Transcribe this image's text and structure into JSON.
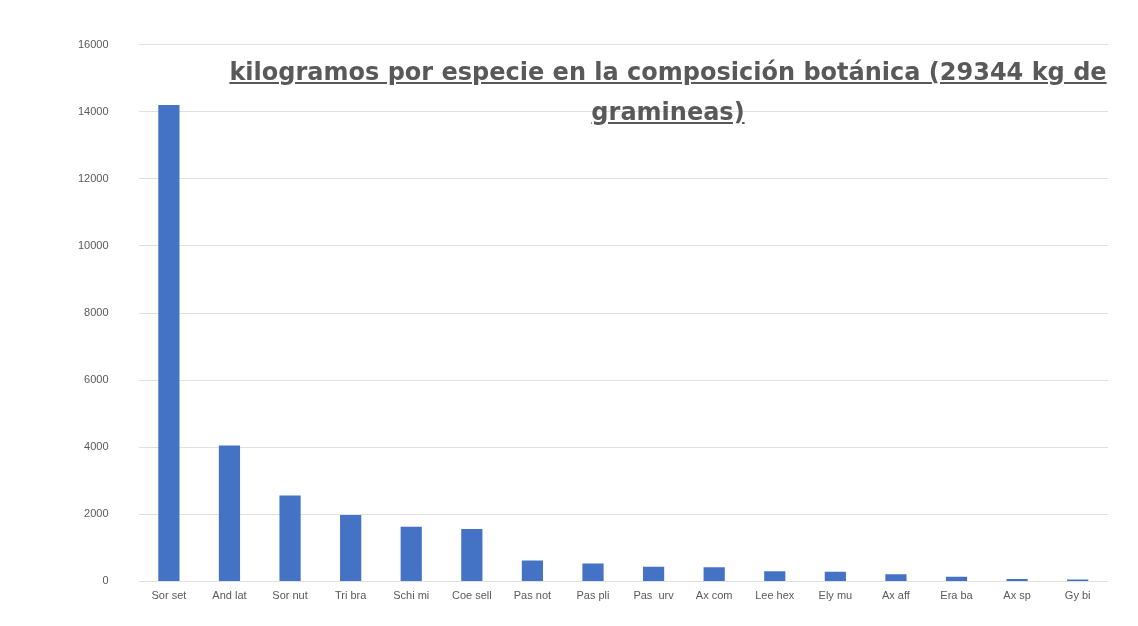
{
  "chart_data": {
    "type": "bar",
    "title": "kilogramos por especie en la composición botánica (29344 kg de gramineas)",
    "categories": [
      "Sor set",
      "And lat",
      "Sor nut",
      "Tri bra",
      "Schi mi",
      "Coe sell",
      "Pas not",
      "Pas pli",
      "Pas  urv",
      "Ax com",
      "Lee hex",
      "Ely mu",
      "Ax aff",
      "Era ba",
      "Ax sp",
      "Gy bi"
    ],
    "values": [
      14200,
      4050,
      2560,
      1980,
      1630,
      1560,
      620,
      530,
      440,
      420,
      300,
      290,
      210,
      140,
      70,
      60
    ],
    "color": "#4472c4",
    "ylim": [
      0,
      16000
    ],
    "yticks": [
      0,
      2000,
      4000,
      6000,
      8000,
      10000,
      12000,
      14000,
      16000
    ],
    "grid": "y"
  }
}
